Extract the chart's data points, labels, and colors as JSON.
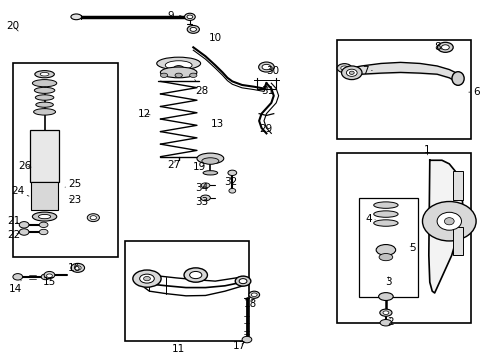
{
  "bg_color": "#ffffff",
  "line_color": "#000000",
  "fig_width": 4.89,
  "fig_height": 3.6,
  "dpi": 100,
  "font_size": 7.5,
  "boxes": {
    "shock_detail": [
      0.025,
      0.28,
      0.215,
      0.515
    ],
    "lower_arm": [
      0.255,
      0.04,
      0.515,
      0.33
    ],
    "upper_arm": [
      0.69,
      0.615,
      0.965,
      0.895
    ],
    "knuckle": [
      0.69,
      0.1,
      0.965,
      0.575
    ],
    "bump_stop": [
      0.73,
      0.18,
      0.855,
      0.455
    ]
  },
  "labels": {
    "1": [
      0.875,
      0.585,
      "right"
    ],
    "2": [
      0.81,
      0.105,
      "left"
    ],
    "3": [
      0.805,
      0.215,
      "left"
    ],
    "4": [
      0.755,
      0.385,
      "left"
    ],
    "5": [
      0.845,
      0.31,
      "left"
    ],
    "6": [
      0.975,
      0.745,
      "right"
    ],
    "7": [
      0.755,
      0.8,
      "left"
    ],
    "8": [
      0.89,
      0.87,
      "left"
    ],
    "9": [
      0.355,
      0.955,
      "left"
    ],
    "10": [
      0.435,
      0.895,
      "left"
    ],
    "11": [
      0.365,
      0.025,
      "left"
    ],
    "12": [
      0.305,
      0.685,
      "left"
    ],
    "13": [
      0.445,
      0.655,
      "left"
    ],
    "14": [
      0.035,
      0.195,
      "left"
    ],
    "15": [
      0.105,
      0.215,
      "left"
    ],
    "16": [
      0.155,
      0.255,
      "left"
    ],
    "17": [
      0.495,
      0.04,
      "left"
    ],
    "18": [
      0.515,
      0.155,
      "left"
    ],
    "19": [
      0.415,
      0.535,
      "left"
    ],
    "20": [
      0.025,
      0.93,
      "left"
    ],
    "21": [
      0.035,
      0.38,
      "left"
    ],
    "22": [
      0.035,
      0.345,
      "left"
    ],
    "23": [
      0.155,
      0.445,
      "left"
    ],
    "24": [
      0.04,
      0.465,
      "left"
    ],
    "25": [
      0.155,
      0.485,
      "left"
    ],
    "26": [
      0.055,
      0.535,
      "left"
    ],
    "27": [
      0.36,
      0.54,
      "left"
    ],
    "28": [
      0.415,
      0.745,
      "left"
    ],
    "29": [
      0.545,
      0.64,
      "left"
    ],
    "30": [
      0.56,
      0.8,
      "left"
    ],
    "31": [
      0.55,
      0.745,
      "left"
    ],
    "32": [
      0.475,
      0.495,
      "left"
    ],
    "33": [
      0.415,
      0.44,
      "left"
    ],
    "34": [
      0.415,
      0.475,
      "left"
    ]
  }
}
